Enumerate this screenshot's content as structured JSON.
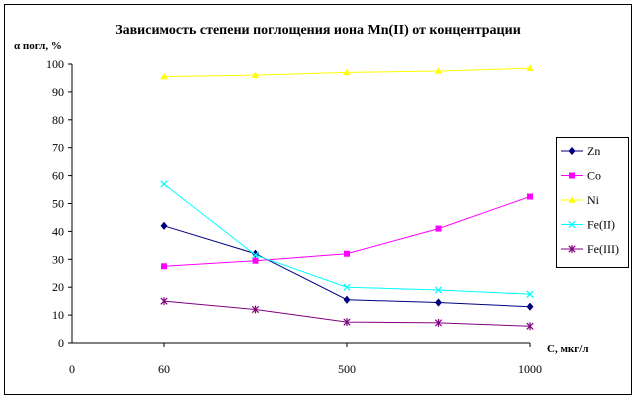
{
  "chart_data": {
    "type": "line",
    "title": "Зависимость степени поглощения иона Mn(II) от концентрации",
    "xlabel": "С, мкг/л",
    "ylabel": "α погл, %",
    "ylim": [
      0,
      100
    ],
    "yticks": [
      "0",
      "10",
      "20",
      "30",
      "40",
      "50",
      "60",
      "70",
      "80",
      "90",
      "100"
    ],
    "xticks": [
      "0",
      "60",
      "500",
      "1000"
    ],
    "categories": [
      "60",
      "",
      "500",
      "",
      "1000"
    ],
    "grid": false,
    "legend_position": "right",
    "series": [
      {
        "name": "Zn",
        "color": "#000080",
        "marker": "diamond",
        "values": [
          42,
          32,
          15.5,
          14.5,
          13
        ]
      },
      {
        "name": "Co",
        "color": "#FF00FF",
        "marker": "square",
        "values": [
          27.5,
          29.5,
          32,
          41,
          52.5
        ]
      },
      {
        "name": "Ni",
        "color": "#FFFF00",
        "marker": "triangle",
        "values": [
          95.5,
          96,
          97,
          97.5,
          98.5
        ]
      },
      {
        "name": "Fe(II)",
        "color": "#00FFFF",
        "marker": "x",
        "values": [
          57,
          31.5,
          20,
          19,
          17.5
        ]
      },
      {
        "name": "Fe(III)",
        "color": "#800080",
        "marker": "star",
        "values": [
          15,
          12,
          7.5,
          7.2,
          6
        ]
      }
    ]
  }
}
